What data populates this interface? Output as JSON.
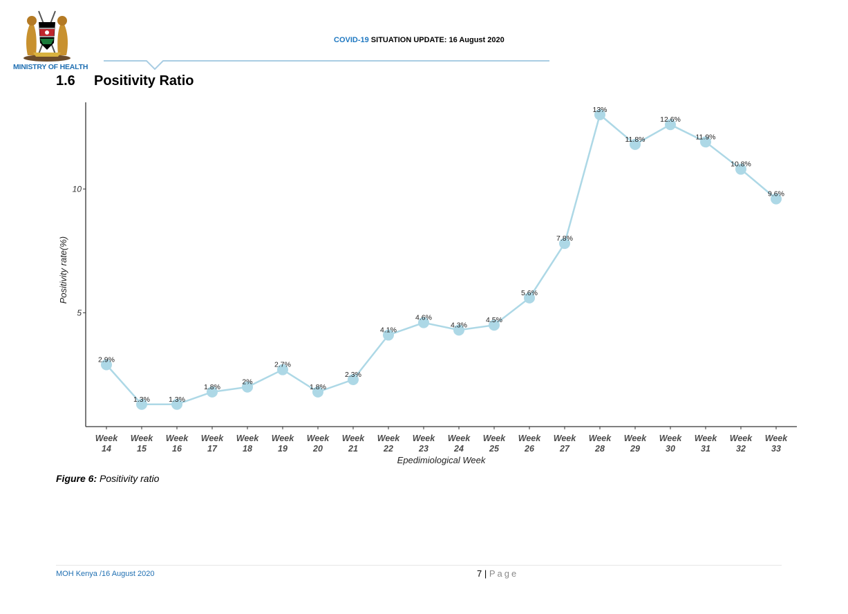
{
  "header": {
    "ministry": "MINISTRY OF HEALTH",
    "title_highlight": "COVID-19",
    "title_rest": " SITUATION UPDATE: 16 August 2020",
    "accent_color": "#1f78c1"
  },
  "section": {
    "number": "1.6",
    "title": "Positivity Ratio"
  },
  "caption": {
    "label": "Figure 6:",
    "text": " Positivity ratio"
  },
  "footer": {
    "left": "MOH Kenya /16 August 2020",
    "page_number": "7",
    "separator": " | ",
    "page_word": "Page"
  },
  "chart_data": {
    "type": "line",
    "xlabel": "Epedimiological Week",
    "ylabel": "Positivity rate(%)",
    "ylim": [
      0.4,
      13.5
    ],
    "yticks": [
      5,
      10
    ],
    "grid": false,
    "line_color": "#add8e6",
    "categories": [
      "Week 14",
      "Week 15",
      "Week 16",
      "Week 17",
      "Week 18",
      "Week 19",
      "Week 20",
      "Week 21",
      "Week 22",
      "Week 23",
      "Week 24",
      "Week 25",
      "Week 26",
      "Week 27",
      "Week 28",
      "Week 29",
      "Week 30",
      "Week 31",
      "Week 32",
      "Week 33"
    ],
    "values": [
      2.9,
      1.3,
      1.3,
      1.8,
      2.0,
      2.7,
      1.8,
      2.3,
      4.1,
      4.6,
      4.3,
      4.5,
      5.6,
      7.8,
      13.0,
      11.8,
      12.6,
      11.9,
      10.8,
      9.6
    ],
    "labels": [
      "2.9%",
      "1.3%",
      "1.3%",
      "1.8%",
      "2%",
      "2.7%",
      "1.8%",
      "2.3%",
      "4.1%",
      "4.6%",
      "4.3%",
      "4.5%",
      "5.6%",
      "7.8%",
      "13%",
      "11.8%",
      "12.6%",
      "11.9%",
      "10.8%",
      "9.6%"
    ]
  }
}
